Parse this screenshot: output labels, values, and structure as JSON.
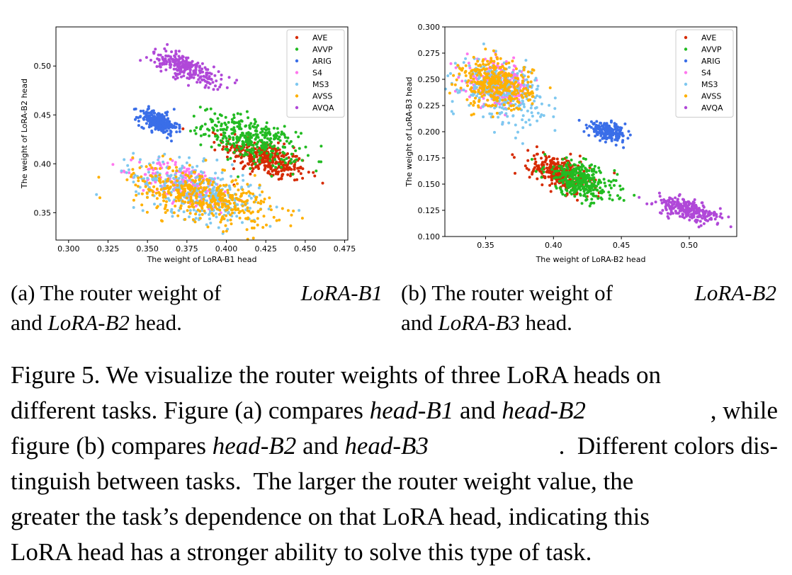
{
  "chart_data": [
    {
      "type": "scatter",
      "xlabel": "The weight of LoRA-B1 head",
      "ylabel": "The weight of LoRA-B2 head",
      "xlim": [
        0.292,
        0.477
      ],
      "ylim": [
        0.322,
        0.54
      ],
      "xticks": [
        "0.300",
        "0.325",
        "0.350",
        "0.375",
        "0.400",
        "0.425",
        "0.450",
        "0.475"
      ],
      "xtick_values": [
        0.3,
        0.325,
        0.35,
        0.375,
        0.4,
        0.425,
        0.45,
        0.475
      ],
      "yticks": [
        "0.35",
        "0.40",
        "0.45",
        "0.50"
      ],
      "ytick_values": [
        0.35,
        0.4,
        0.45,
        0.5
      ],
      "legend_position": "top-right",
      "series": [
        {
          "name": "AVE",
          "color": "#d62a00",
          "center": [
            0.425,
            0.405
          ],
          "spread": [
            0.013,
            0.011
          ],
          "corr": -0.6,
          "count": 340
        },
        {
          "name": "AVVP",
          "color": "#22bb22",
          "center": [
            0.415,
            0.425
          ],
          "spread": [
            0.015,
            0.013
          ],
          "corr": -0.55,
          "count": 340
        },
        {
          "name": "ARIG",
          "color": "#3a6ee8",
          "center": [
            0.357,
            0.443
          ],
          "spread": [
            0.006,
            0.006
          ],
          "corr": -0.5,
          "count": 240
        },
        {
          "name": "S4",
          "color": "#ff77ee",
          "center": [
            0.375,
            0.378
          ],
          "spread": [
            0.015,
            0.012
          ],
          "corr": -0.5,
          "count": 220
        },
        {
          "name": "MS3",
          "color": "#7fc8f0",
          "center": [
            0.382,
            0.372
          ],
          "spread": [
            0.02,
            0.016
          ],
          "corr": -0.5,
          "count": 360
        },
        {
          "name": "AVSS",
          "color": "#ffb000",
          "center": [
            0.385,
            0.367
          ],
          "spread": [
            0.022,
            0.015
          ],
          "corr": -0.5,
          "count": 420
        },
        {
          "name": "AVQA",
          "color": "#b048d8",
          "center": [
            0.375,
            0.498
          ],
          "spread": [
            0.011,
            0.009
          ],
          "corr": -0.75,
          "count": 250
        }
      ]
    },
    {
      "type": "scatter",
      "xlabel": "The weight of LoRA-B2 head",
      "ylabel": "The weight of LoRA-B3 head",
      "xlim": [
        0.32,
        0.535
      ],
      "ylim": [
        0.1,
        0.3
      ],
      "xticks": [
        "0.35",
        "0.40",
        "0.45",
        "0.50"
      ],
      "xtick_values": [
        0.35,
        0.4,
        0.45,
        0.5
      ],
      "yticks": [
        "0.100",
        "0.125",
        "0.150",
        "0.175",
        "0.200",
        "0.225",
        "0.250",
        "0.275",
        "0.300"
      ],
      "ytick_values": [
        0.1,
        0.125,
        0.15,
        0.175,
        0.2,
        0.225,
        0.25,
        0.275,
        0.3
      ],
      "legend_position": "top-right",
      "series": [
        {
          "name": "AVE",
          "color": "#d62a00",
          "center": [
            0.405,
            0.16
          ],
          "spread": [
            0.011,
            0.009
          ],
          "corr": -0.5,
          "count": 300
        },
        {
          "name": "AVVP",
          "color": "#22bb22",
          "center": [
            0.42,
            0.153
          ],
          "spread": [
            0.013,
            0.01
          ],
          "corr": -0.5,
          "count": 320
        },
        {
          "name": "ARIG",
          "color": "#3a6ee8",
          "center": [
            0.44,
            0.2
          ],
          "spread": [
            0.007,
            0.004
          ],
          "corr": -0.4,
          "count": 200
        },
        {
          "name": "S4",
          "color": "#ff77ee",
          "center": [
            0.36,
            0.245
          ],
          "spread": [
            0.012,
            0.011
          ],
          "corr": -0.2,
          "count": 220
        },
        {
          "name": "MS3",
          "color": "#7fc8f0",
          "center": [
            0.362,
            0.24
          ],
          "spread": [
            0.015,
            0.014
          ],
          "corr": -0.3,
          "count": 320
        },
        {
          "name": "AVSS",
          "color": "#ffb000",
          "center": [
            0.358,
            0.245
          ],
          "spread": [
            0.013,
            0.012
          ],
          "corr": -0.2,
          "count": 360
        },
        {
          "name": "AVQA",
          "color": "#b048d8",
          "center": [
            0.5,
            0.125
          ],
          "spread": [
            0.012,
            0.006
          ],
          "corr": -0.6,
          "count": 260
        }
      ]
    }
  ],
  "captions": {
    "a": {
      "line1_p1": "(a) The router weight of ",
      "line1_em": "LoRA-B1",
      "line2_p1": "and ",
      "line2_em": "LoRA-B2",
      "line2_p2": " head."
    },
    "b": {
      "line1_p1": "(b) The router weight of ",
      "line1_em": "LoRA-B2",
      "line2_p1": "and ",
      "line2_em": "LoRA-B3",
      "line2_p2": " head."
    }
  },
  "figure_caption": {
    "l1": "Figure 5. We visualize the router weights of three LoRA heads on",
    "l2a": "different tasks. Figure (a) compares ",
    "l2em1": "head-B1",
    "l2b": " and ",
    "l2em2": "head-B2",
    "l2c": ", while",
    "l3a": "figure (b) compares ",
    "l3em1": "head-B2",
    "l3b": " and ",
    "l3em2": "head-B3",
    "l3c": ".  Different colors dis-",
    "l4": "tinguish between tasks.  The larger the router weight value, the",
    "l5": "greater the task’s dependence on that LoRA head, indicating this",
    "l6": "LoRA head has a stronger ability to solve this type of task."
  }
}
